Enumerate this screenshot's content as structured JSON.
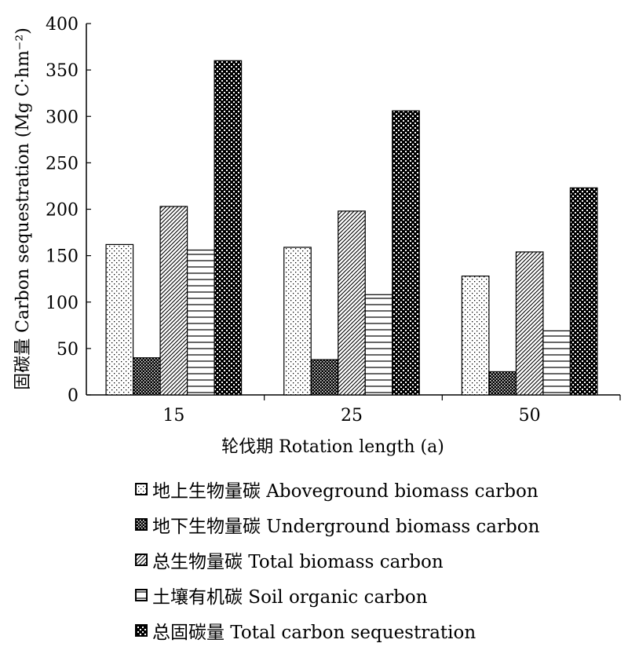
{
  "chart_data": {
    "type": "bar",
    "categories": [
      "15",
      "25",
      "50"
    ],
    "series": [
      {
        "name": "地上生物量碳 Aboveground biomass carbon",
        "values": [
          162,
          159,
          128
        ],
        "pattern": "dots"
      },
      {
        "name": "地下生物量碳 Underground biomass carbon",
        "values": [
          40,
          38,
          25
        ],
        "pattern": "dense-check"
      },
      {
        "name": "总生物量碳 Total biomass carbon",
        "values": [
          203,
          198,
          154
        ],
        "pattern": "diagonal"
      },
      {
        "name": "土壤有机碳 Soil organic carbon",
        "values": [
          156,
          108,
          69
        ],
        "pattern": "horizontal"
      },
      {
        "name": "总固碳量 Total carbon sequestration",
        "values": [
          360,
          306,
          223
        ],
        "pattern": "checker"
      }
    ],
    "xlabel": "轮伐期  Rotation length (a)",
    "ylabel": "固碳量  Carbon sequestration (Mg C·hm⁻²)",
    "ylim": [
      0,
      400
    ],
    "yticks": [
      0,
      50,
      100,
      150,
      200,
      250,
      300,
      350,
      400
    ],
    "grid": false,
    "legend_position": "bottom"
  }
}
